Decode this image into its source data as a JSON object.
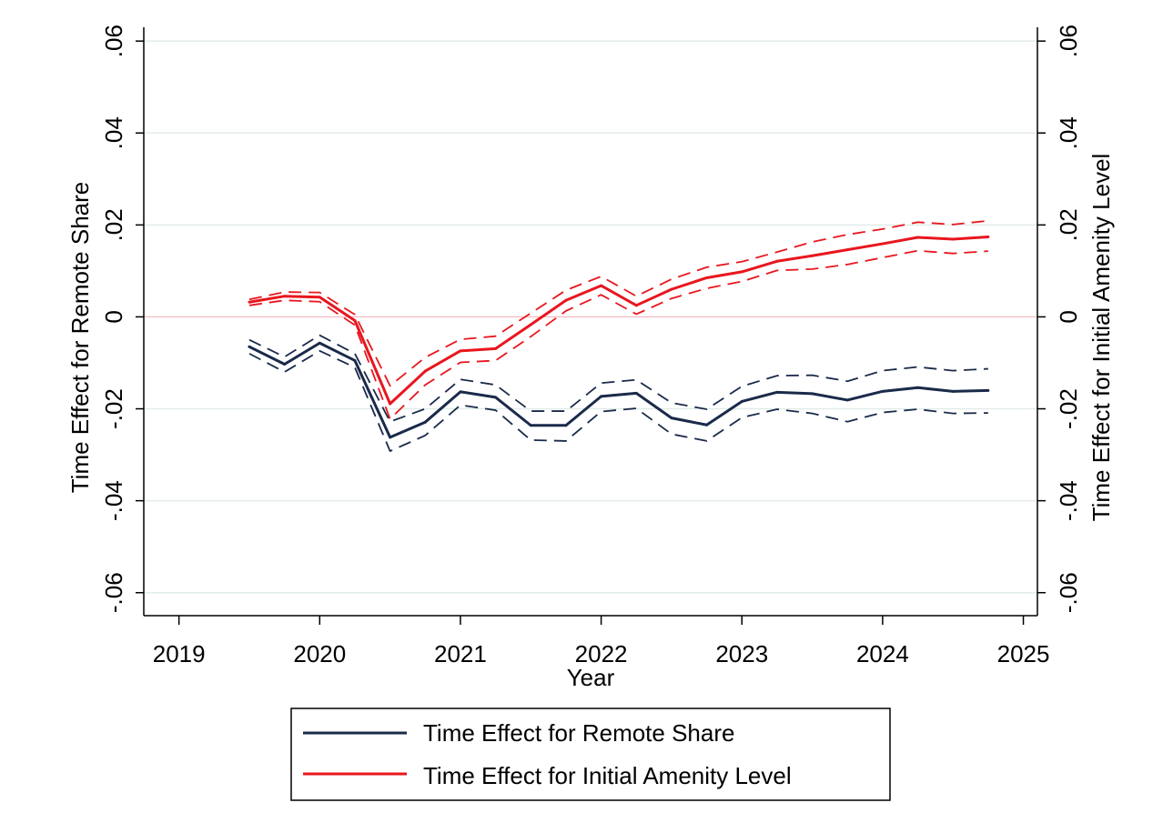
{
  "chart_data": {
    "type": "line",
    "xlabel": "Year",
    "ylabel_left": "Time Effect for Remote Share",
    "ylabel_right": "Time Effect for Initial Amenity Level",
    "xlim": [
      2018.75,
      2025.1
    ],
    "ylim": [
      -0.065,
      0.063
    ],
    "x_ticks": [
      2019,
      2020,
      2021,
      2022,
      2023,
      2024,
      2025
    ],
    "x_tick_labels": [
      "2019",
      "2020",
      "2021",
      "2022",
      "2023",
      "2024",
      "2025"
    ],
    "y_ticks": [
      -0.06,
      -0.04,
      -0.02,
      0,
      0.02,
      0.04,
      0.06
    ],
    "y_tick_labels": [
      "-.06",
      "-.04",
      "-.02",
      "0",
      ".02",
      ".04",
      ".06"
    ],
    "grid": true,
    "zero_line": true,
    "legend_position": "bottom",
    "x": [
      2019.5,
      2019.75,
      2020.0,
      2020.25,
      2020.5,
      2020.75,
      2021.0,
      2021.25,
      2021.5,
      2021.75,
      2022.0,
      2022.25,
      2022.5,
      2022.75,
      2023.0,
      2023.25,
      2023.5,
      2023.75,
      2024.0,
      2024.25,
      2024.5,
      2024.75
    ],
    "series": [
      {
        "name": "Time Effect for Remote Share",
        "color": "#1a2a4a",
        "values": [
          -0.0065,
          -0.0103,
          -0.0057,
          -0.0095,
          -0.0262,
          -0.0229,
          -0.0163,
          -0.0175,
          -0.0236,
          -0.0236,
          -0.0173,
          -0.0166,
          -0.022,
          -0.0235,
          -0.0184,
          -0.0164,
          -0.0167,
          -0.0181,
          -0.0162,
          -0.0154,
          -0.0162,
          -0.016
        ],
        "upper": [
          -0.005,
          -0.0087,
          -0.004,
          -0.008,
          -0.0228,
          -0.02,
          -0.0136,
          -0.0148,
          -0.0205,
          -0.0205,
          -0.0144,
          -0.0137,
          -0.0187,
          -0.0201,
          -0.0151,
          -0.0128,
          -0.0127,
          -0.014,
          -0.0117,
          -0.0109,
          -0.0117,
          -0.0113
        ],
        "lower": [
          -0.008,
          -0.012,
          -0.0074,
          -0.011,
          -0.0292,
          -0.0258,
          -0.0192,
          -0.0203,
          -0.0268,
          -0.027,
          -0.0206,
          -0.0199,
          -0.0255,
          -0.027,
          -0.0219,
          -0.0201,
          -0.021,
          -0.0228,
          -0.0208,
          -0.0201,
          -0.021,
          -0.0209
        ]
      },
      {
        "name": "Time Effect for Initial Amenity Level",
        "color": "#e8161e",
        "values": [
          0.0032,
          0.0045,
          0.0043,
          -0.0008,
          -0.0189,
          -0.0118,
          -0.0074,
          -0.0069,
          -0.0017,
          0.0036,
          0.0068,
          0.0025,
          0.006,
          0.0085,
          0.0098,
          0.0121,
          0.0133,
          0.0146,
          0.0159,
          0.0173,
          0.0169,
          0.0174
        ],
        "upper": [
          0.0038,
          0.0054,
          0.0053,
          0.0005,
          -0.015,
          -0.0088,
          -0.0049,
          -0.0042,
          0.0008,
          0.0058,
          0.0088,
          0.0045,
          0.0082,
          0.0108,
          0.012,
          0.0141,
          0.0163,
          0.0179,
          0.0191,
          0.0206,
          0.0201,
          0.0209
        ],
        "lower": [
          0.0025,
          0.0036,
          0.0033,
          -0.0018,
          -0.0222,
          -0.0148,
          -0.0099,
          -0.0095,
          -0.0043,
          0.0013,
          0.0048,
          0.0006,
          0.004,
          0.0062,
          0.0077,
          0.0101,
          0.0104,
          0.0114,
          0.0129,
          0.0144,
          0.0138,
          0.0143
        ]
      }
    ]
  }
}
